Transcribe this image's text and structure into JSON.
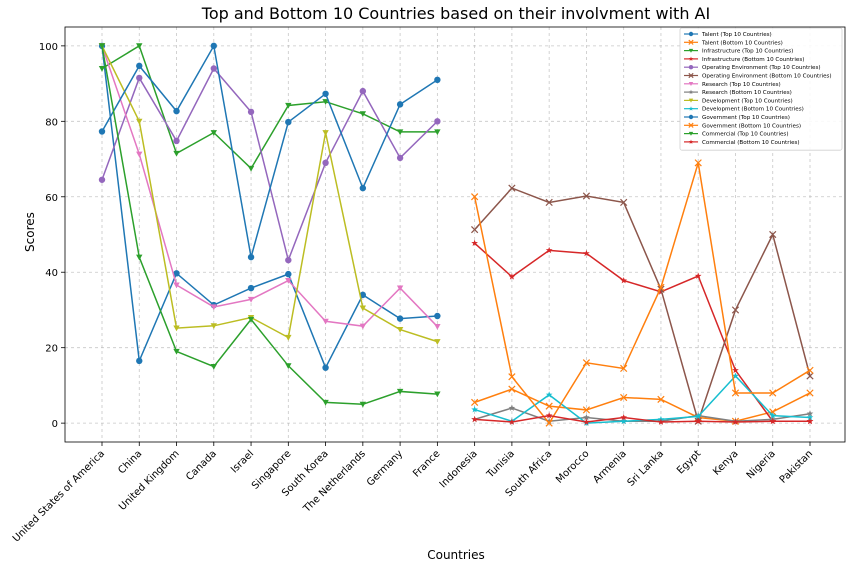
{
  "chart_data": {
    "type": "line",
    "title": "Top and Bottom 10 Countries based on their involvment with AI",
    "xlabel": "Countries",
    "ylabel": "Scores",
    "categories": [
      "United States of America",
      "China",
      "United Kingdom",
      "Canada",
      "Israel",
      "Singapore",
      "South Korea",
      "The Netherlands",
      "Germany",
      "France",
      "Indonesia",
      "Tunisia",
      "South Africa",
      "Morocco",
      "Armenia",
      "Sri Lanka",
      "Egypt",
      "Kenya",
      "Nigeria",
      "Pakistan"
    ],
    "ylim": [
      -5,
      105
    ],
    "yticks": [
      0,
      20,
      40,
      60,
      80,
      100
    ],
    "grid": true,
    "legend": "upper right",
    "series": [
      {
        "name": "Talent (Top 10 Countries)",
        "color": "#1f77b4",
        "marker": "o",
        "values": [
          100,
          16.5,
          39.7,
          31.3,
          35.8,
          39.5,
          14.7,
          34,
          27.7,
          28.4,
          null,
          null,
          null,
          null,
          null,
          null,
          null,
          null,
          null,
          null
        ]
      },
      {
        "name": "Talent (Bottom 10 Countries)",
        "color": "#ff7f0e",
        "marker": "x",
        "values": [
          null,
          null,
          null,
          null,
          null,
          null,
          null,
          null,
          null,
          null,
          5.5,
          9,
          4.5,
          3.5,
          6.8,
          6.3,
          1.5,
          0.5,
          3,
          8
        ]
      },
      {
        "name": "Infrastructure (Top 10 Countries)",
        "color": "#2ca02c",
        "marker": "v",
        "values": [
          94,
          100,
          71.5,
          77,
          67.5,
          84.2,
          85.2,
          82,
          77.2,
          77.2,
          null,
          null,
          null,
          null,
          null,
          null,
          null,
          null,
          null,
          null
        ]
      },
      {
        "name": "Infrastructure (Bottom 10 Countries)",
        "color": "#d62728",
        "marker": "*",
        "values": [
          null,
          null,
          null,
          null,
          null,
          null,
          null,
          null,
          null,
          null,
          47.7,
          38.8,
          45.8,
          45,
          37.8,
          34.8,
          39,
          14,
          0.5,
          0.5
        ]
      },
      {
        "name": "Operating Environment (Top 10 Countries)",
        "color": "#9467bd",
        "marker": "o",
        "values": [
          64.5,
          91.5,
          74.8,
          94,
          82.5,
          43.2,
          69,
          88,
          70.3,
          80,
          null,
          null,
          null,
          null,
          null,
          null,
          null,
          null,
          null,
          null
        ]
      },
      {
        "name": "Operating Environment (Bottom 10 Countries)",
        "color": "#8c564b",
        "marker": "x",
        "values": [
          null,
          null,
          null,
          null,
          null,
          null,
          null,
          null,
          null,
          null,
          51.3,
          62.3,
          58.5,
          60.2,
          58.5,
          35.5,
          0.5,
          30,
          50,
          12.5
        ]
      },
      {
        "name": "Research (Top 10 Countries)",
        "color": "#e377c2",
        "marker": "v",
        "values": [
          100,
          71.3,
          36.6,
          30.8,
          32.8,
          37.8,
          27,
          25.7,
          35.8,
          25.6,
          null,
          null,
          null,
          null,
          null,
          null,
          null,
          null,
          null,
          null
        ]
      },
      {
        "name": "Research (Bottom 10 Countries)",
        "color": "#7f7f7f",
        "marker": "*",
        "values": [
          null,
          null,
          null,
          null,
          null,
          null,
          null,
          null,
          null,
          null,
          1,
          4,
          0.5,
          1.5,
          0.5,
          0.5,
          2,
          0.5,
          1,
          2.5
        ]
      },
      {
        "name": "Development (Top 10 Countries)",
        "color": "#bcbd22",
        "marker": "v",
        "values": [
          100,
          80,
          25.2,
          25.8,
          28,
          22.7,
          77,
          30.5,
          24.8,
          21.6,
          null,
          null,
          null,
          null,
          null,
          null,
          null,
          null,
          null,
          null
        ]
      },
      {
        "name": "Development (Bottom 10 Countries)",
        "color": "#17becf",
        "marker": "*",
        "values": [
          null,
          null,
          null,
          null,
          null,
          null,
          null,
          null,
          null,
          null,
          3.6,
          0.5,
          7.5,
          0,
          0.5,
          1,
          1.8,
          12.5,
          2,
          1.5
        ]
      },
      {
        "name": "Government (Top 10 Countries)",
        "color": "#1f77b4",
        "marker": "o",
        "values": [
          77.3,
          94.7,
          82.7,
          100,
          44,
          79.8,
          87.3,
          62.3,
          84.5,
          91,
          null,
          null,
          null,
          null,
          null,
          null,
          null,
          null,
          null,
          null
        ]
      },
      {
        "name": "Government (Bottom 10 Countries)",
        "color": "#ff7f0e",
        "marker": "x",
        "values": [
          null,
          null,
          null,
          null,
          null,
          null,
          null,
          null,
          null,
          null,
          60,
          12.3,
          0,
          16,
          14.5,
          36,
          69,
          8,
          8,
          14
        ]
      },
      {
        "name": "Commercial (Top 10 Countries)",
        "color": "#2ca02c",
        "marker": "v",
        "values": [
          100,
          44,
          19,
          15,
          27.5,
          15.2,
          5.5,
          5,
          8.4,
          7.7,
          null,
          null,
          null,
          null,
          null,
          null,
          null,
          null,
          null,
          null
        ]
      },
      {
        "name": "Commercial (Bottom 10 Countries)",
        "color": "#d62728",
        "marker": "*",
        "values": [
          null,
          null,
          null,
          null,
          null,
          null,
          null,
          null,
          null,
          null,
          1,
          0.3,
          2,
          0.3,
          1.5,
          0.3,
          0.5,
          0.3,
          0.5,
          0.5
        ]
      }
    ]
  }
}
